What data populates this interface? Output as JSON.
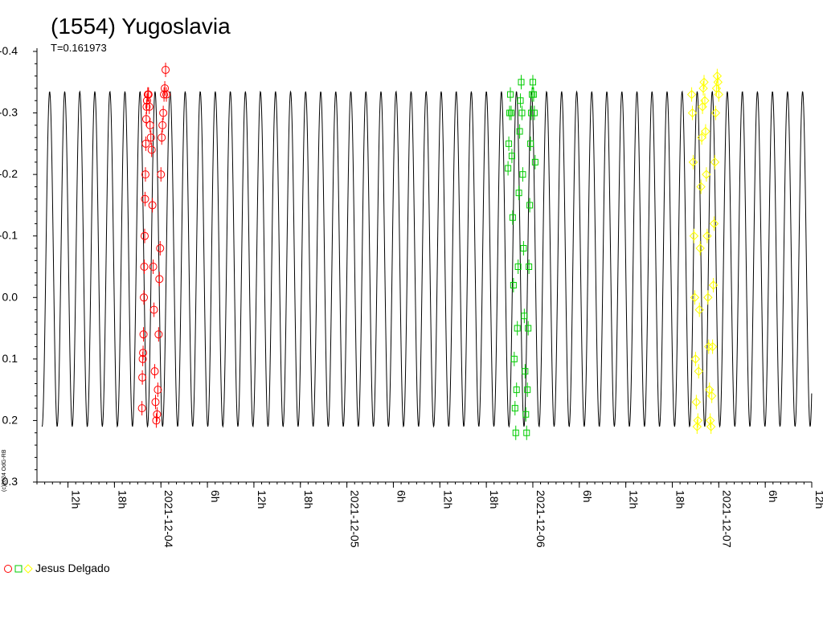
{
  "page": {
    "title": "(1554) Yugoslavia",
    "subtitle": "T=0.161973",
    "copyright": "(c)2024 OdG-RB"
  },
  "legend": {
    "observer": "Jesus Delgado"
  },
  "colors": {
    "red": "#ff0000",
    "green": "#00cc00",
    "yellow": "#ffff00",
    "curve": "#000000"
  },
  "chart_data": {
    "type": "scatter",
    "title": "(1554) Yugoslavia",
    "subtitle": "T=0.161973",
    "xlabel": "",
    "ylabel": "",
    "x_axis": {
      "kind": "datetime",
      "start": "2021-12-03T08:00",
      "end": "2021-12-07T12:00",
      "tick_labels": [
        "12h",
        "18h",
        "2021-12-04",
        "6h",
        "12h",
        "18h",
        "2021-12-05",
        "6h",
        "12h",
        "18h",
        "2021-12-06",
        "6h",
        "12h",
        "18h",
        "2021-12-07",
        "6h",
        "12h"
      ]
    },
    "ylim": [
      -0.4,
      0.3
    ],
    "y_inverted": true,
    "y_ticks": [
      "-0.4",
      "-0.3",
      "-0.2",
      "-0.1",
      "0.0",
      "0.1",
      "0.2",
      "0.3"
    ],
    "model_curve": {
      "period_days": 0.161973,
      "max": 0.21,
      "min": -0.335
    },
    "series": [
      {
        "name": "Jesus Delgado",
        "color": "red",
        "marker": "circle",
        "night": "2021-12-03/04",
        "time_range": [
          "2021-12-03T21:30",
          "2021-12-04T00:30"
        ],
        "points": [
          [
            21.55,
            0.18
          ],
          [
            21.6,
            0.13
          ],
          [
            21.65,
            0.1
          ],
          [
            21.7,
            0.09
          ],
          [
            21.75,
            0.06
          ],
          [
            21.8,
            0.0
          ],
          [
            21.85,
            -0.05
          ],
          [
            21.9,
            -0.1
          ],
          [
            21.95,
            -0.16
          ],
          [
            22.0,
            -0.2
          ],
          [
            22.05,
            -0.25
          ],
          [
            22.1,
            -0.29
          ],
          [
            22.15,
            -0.31
          ],
          [
            22.2,
            -0.32
          ],
          [
            22.3,
            -0.33
          ],
          [
            22.4,
            -0.33
          ],
          [
            22.5,
            -0.31
          ],
          [
            22.6,
            -0.28
          ],
          [
            22.7,
            -0.26
          ],
          [
            22.8,
            -0.24
          ],
          [
            22.9,
            -0.15
          ],
          [
            23.0,
            -0.05
          ],
          [
            23.1,
            0.02
          ],
          [
            23.2,
            0.12
          ],
          [
            23.3,
            0.17
          ],
          [
            23.4,
            0.2
          ],
          [
            23.5,
            0.19
          ],
          [
            23.6,
            0.15
          ],
          [
            23.7,
            0.06
          ],
          [
            23.8,
            -0.03
          ],
          [
            23.9,
            -0.08
          ],
          [
            24.0,
            -0.2
          ],
          [
            24.1,
            -0.26
          ],
          [
            24.2,
            -0.28
          ],
          [
            24.3,
            -0.3
          ],
          [
            24.4,
            -0.33
          ],
          [
            24.5,
            -0.34
          ],
          [
            24.6,
            -0.37
          ],
          [
            24.7,
            -0.33
          ]
        ]
      },
      {
        "name": "Jesus Delgado",
        "color": "green",
        "marker": "square",
        "night": "2021-12-05/06",
        "time_range": [
          "2021-12-05T20:30",
          "2021-12-06T00:30"
        ],
        "points": [
          [
            20.8,
            -0.21
          ],
          [
            20.9,
            -0.25
          ],
          [
            21.0,
            -0.3
          ],
          [
            21.1,
            -0.33
          ],
          [
            21.2,
            -0.3
          ],
          [
            21.3,
            -0.23
          ],
          [
            21.4,
            -0.13
          ],
          [
            21.5,
            -0.02
          ],
          [
            21.6,
            0.1
          ],
          [
            21.7,
            0.18
          ],
          [
            21.8,
            0.22
          ],
          [
            21.9,
            0.15
          ],
          [
            22.0,
            0.05
          ],
          [
            22.1,
            -0.05
          ],
          [
            22.2,
            -0.17
          ],
          [
            22.3,
            -0.27
          ],
          [
            22.4,
            -0.32
          ],
          [
            22.5,
            -0.35
          ],
          [
            22.6,
            -0.3
          ],
          [
            22.7,
            -0.2
          ],
          [
            22.8,
            -0.08
          ],
          [
            22.9,
            0.03
          ],
          [
            23.0,
            0.12
          ],
          [
            23.1,
            0.19
          ],
          [
            23.2,
            0.22
          ],
          [
            23.3,
            0.15
          ],
          [
            23.4,
            0.05
          ],
          [
            23.5,
            -0.05
          ],
          [
            23.6,
            -0.15
          ],
          [
            23.7,
            -0.25
          ],
          [
            23.8,
            -0.3
          ],
          [
            23.9,
            -0.33
          ],
          [
            24.0,
            -0.35
          ],
          [
            24.1,
            -0.33
          ],
          [
            24.2,
            -0.3
          ],
          [
            24.3,
            -0.22
          ]
        ]
      },
      {
        "name": "Jesus Delgado",
        "color": "yellow",
        "marker": "diamond",
        "night": "2021-12-06/07",
        "time_range": [
          "2021-12-06T20:30",
          "2021-12-07T00:30"
        ],
        "points": [
          [
            20.5,
            -0.33
          ],
          [
            20.6,
            -0.3
          ],
          [
            20.7,
            -0.22
          ],
          [
            20.8,
            -0.1
          ],
          [
            20.9,
            0.0
          ],
          [
            21.0,
            0.1
          ],
          [
            21.1,
            0.17
          ],
          [
            21.2,
            0.21
          ],
          [
            21.3,
            0.2
          ],
          [
            21.4,
            0.12
          ],
          [
            21.5,
            0.02
          ],
          [
            21.6,
            -0.08
          ],
          [
            21.7,
            -0.18
          ],
          [
            21.8,
            -0.26
          ],
          [
            21.9,
            -0.31
          ],
          [
            22.0,
            -0.34
          ],
          [
            22.1,
            -0.35
          ],
          [
            22.2,
            -0.32
          ],
          [
            22.3,
            -0.27
          ],
          [
            22.4,
            -0.2
          ],
          [
            22.5,
            -0.1
          ],
          [
            22.6,
            0.0
          ],
          [
            22.7,
            0.08
          ],
          [
            22.8,
            0.15
          ],
          [
            22.9,
            0.2
          ],
          [
            23.0,
            0.21
          ],
          [
            23.1,
            0.16
          ],
          [
            23.2,
            0.08
          ],
          [
            23.3,
            -0.02
          ],
          [
            23.4,
            -0.12
          ],
          [
            23.5,
            -0.22
          ],
          [
            23.6,
            -0.3
          ],
          [
            23.7,
            -0.34
          ],
          [
            23.8,
            -0.36
          ],
          [
            23.9,
            -0.35
          ],
          [
            24.0,
            -0.33
          ]
        ]
      }
    ]
  }
}
